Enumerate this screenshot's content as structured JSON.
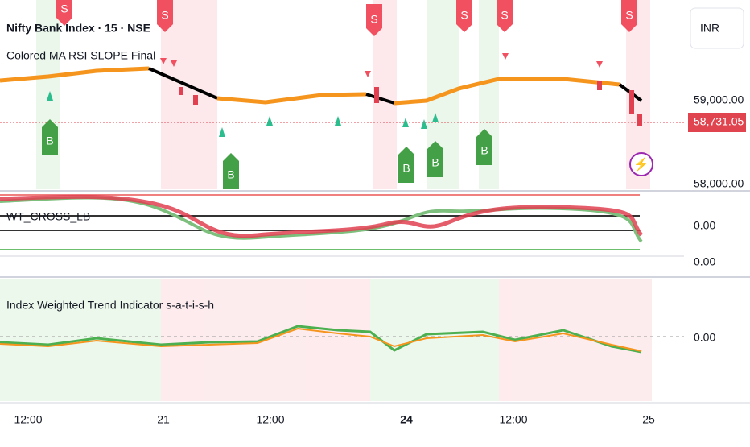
{
  "header": {
    "symbol": "Nifty Bank Index · 15 · NSE",
    "currency": "INR"
  },
  "panes": [
    {
      "label": "Colored MA RSI SLOPE Final",
      "price_labels": [
        "59,000.00",
        "58,000.00"
      ],
      "last_price": "58,731.05",
      "sell_label": "S",
      "buy_label": "B"
    },
    {
      "label": "WT_CROSS_LB",
      "value_labels": [
        "0.00",
        "0.00"
      ]
    },
    {
      "label": "Index Weighted Trend Indicator s-a-t-i-s-h",
      "value_labels": [
        "0.00"
      ]
    }
  ],
  "time_axis": [
    "12:00",
    "21",
    "12:00",
    "24",
    "12:00",
    "25"
  ]
}
